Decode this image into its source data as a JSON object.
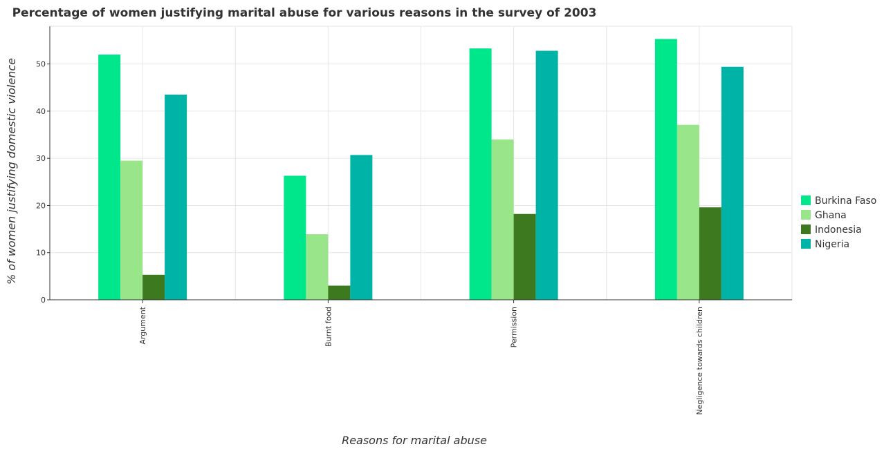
{
  "chart_data": {
    "type": "bar",
    "title": "Percentage of women justifying marital abuse for various reasons in the survey of 2003",
    "xlabel": "Reasons for marital abuse",
    "ylabel": "% of women justifying domestic violence",
    "categories": [
      "Argument",
      "Burnt food",
      "Permission",
      "Negligence towards children"
    ],
    "ylim": [
      0,
      58
    ],
    "yticks": [
      0,
      10,
      20,
      30,
      40,
      50
    ],
    "ytick_labels": [
      "0",
      "10",
      "20",
      "30",
      "40",
      "50"
    ],
    "grid": true,
    "legend_position": "right",
    "series": [
      {
        "name": "Burkina Faso",
        "color": "#00e68a",
        "values": [
          52.0,
          26.3,
          53.3,
          55.3
        ]
      },
      {
        "name": "Ghana",
        "color": "#99e68a",
        "values": [
          29.5,
          13.9,
          34.0,
          37.1
        ]
      },
      {
        "name": "Indonesia",
        "color": "#3d7a1f",
        "values": [
          5.3,
          3.0,
          18.2,
          19.6
        ]
      },
      {
        "name": "Nigeria",
        "color": "#00b3a7",
        "values": [
          43.5,
          30.7,
          52.8,
          49.4
        ]
      }
    ]
  }
}
